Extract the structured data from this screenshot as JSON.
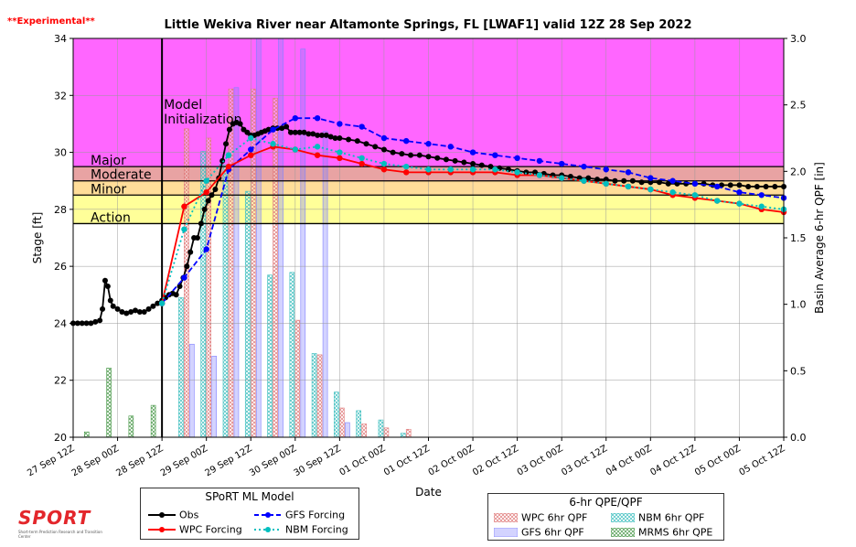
{
  "experimental_label": "**Experimental**",
  "title": "Little Wekiva River near Altamonte Springs, FL [LWAF1] valid  12Z 28 Sep 2022",
  "logo": {
    "text": "SPORT",
    "tagline": "Short-term Prediction Research and Transition Center"
  },
  "legends": {
    "model": {
      "title": "SPoRT ML Model",
      "items": [
        {
          "name": "Obs",
          "color": "#000000",
          "style": "solid"
        },
        {
          "name": "GFS Forcing",
          "color": "#0000ff",
          "style": "dashed"
        },
        {
          "name": "WPC Forcing",
          "color": "#ff0000",
          "style": "solid"
        },
        {
          "name": "NBM Forcing",
          "color": "#00bfbf",
          "style": "dotted"
        }
      ]
    },
    "qpf": {
      "title": "6-hr QPE/QPF",
      "items": [
        {
          "name": "WPC 6hr QPF",
          "color": "#e07b7b"
        },
        {
          "name": "NBM 6hr QPF",
          "color": "#3fbfbf"
        },
        {
          "name": "GFS 6hr QPF",
          "color": "#8080ff"
        },
        {
          "name": "MRMS 6hr QPE",
          "color": "#4c9a4c"
        }
      ]
    }
  },
  "chart_data": {
    "type": "line",
    "xlabel": "Date",
    "ylabel": "Stage [ft]",
    "y2label": "Basin Average 6-hr QPF [in]",
    "xlim": [
      0,
      8
    ],
    "ylim": [
      20,
      34
    ],
    "y2lim": [
      0.0,
      3.0
    ],
    "x_ticks": [
      {
        "x": 0,
        "label": "27 Sep 12Z"
      },
      {
        "x": 0.5,
        "label": "28 Sep 00Z"
      },
      {
        "x": 1,
        "label": "28 Sep 12Z"
      },
      {
        "x": 1.5,
        "label": "29 Sep 00Z"
      },
      {
        "x": 2,
        "label": "29 Sep 12Z"
      },
      {
        "x": 2.5,
        "label": "30 Sep 00Z"
      },
      {
        "x": 3,
        "label": "30 Sep 12Z"
      },
      {
        "x": 3.5,
        "label": "01 Oct 00Z"
      },
      {
        "x": 4,
        "label": "01 Oct 12Z"
      },
      {
        "x": 4.5,
        "label": "02 Oct 00Z"
      },
      {
        "x": 5,
        "label": "02 Oct 12Z"
      },
      {
        "x": 5.5,
        "label": "03 Oct 00Z"
      },
      {
        "x": 6,
        "label": "03 Oct 12Z"
      },
      {
        "x": 6.5,
        "label": "04 Oct 00Z"
      },
      {
        "x": 7,
        "label": "04 Oct 12Z"
      },
      {
        "x": 7.5,
        "label": "05 Oct 00Z"
      },
      {
        "x": 8,
        "label": "05 Oct 12Z"
      }
    ],
    "y_ticks": [
      20,
      22,
      24,
      26,
      28,
      30,
      32,
      34
    ],
    "y2_ticks": [
      {
        "v": 0.0,
        "label": "0.0"
      },
      {
        "v": 0.5,
        "label": "0.5"
      },
      {
        "v": 1.0,
        "label": "1.0"
      },
      {
        "v": 1.5,
        "label": "1.5"
      },
      {
        "v": 2.0,
        "label": "2.0"
      },
      {
        "v": 2.5,
        "label": "2.5"
      },
      {
        "v": 3.0,
        "label": "3.0"
      }
    ],
    "grid": true,
    "init_x": 1,
    "init_label": [
      "Model",
      "Initialization"
    ],
    "flood_levels": [
      {
        "name": "Major",
        "from": 29.5,
        "to": 34,
        "color": "#ff66ff",
        "line": true
      },
      {
        "name": "Moderate",
        "from": 29,
        "to": 29.5,
        "color": "#e8a3a3",
        "line": true
      },
      {
        "name": "Minor",
        "from": 28.5,
        "to": 29,
        "color": "#ffdd99",
        "line": true
      },
      {
        "name": "Action",
        "from": 27.5,
        "to": 28.5,
        "color": "#ffff99",
        "line": true
      }
    ],
    "series": [
      {
        "name": "Obs",
        "color": "#000000",
        "style": "solid",
        "marker": "circle",
        "x": [
          0,
          0.05,
          0.1,
          0.15,
          0.2,
          0.25,
          0.3,
          0.33,
          0.36,
          0.39,
          0.42,
          0.45,
          0.5,
          0.55,
          0.6,
          0.65,
          0.7,
          0.75,
          0.8,
          0.85,
          0.9,
          0.95,
          1.0,
          1.04,
          1.08,
          1.12,
          1.16,
          1.2,
          1.24,
          1.28,
          1.32,
          1.36,
          1.4,
          1.44,
          1.48,
          1.52,
          1.56,
          1.6,
          1.64,
          1.68,
          1.72,
          1.76,
          1.8,
          1.84,
          1.88,
          1.92,
          1.96,
          2.0,
          2.04,
          2.08,
          2.12,
          2.16,
          2.2,
          2.25,
          2.3,
          2.35,
          2.4,
          2.45,
          2.5,
          2.55,
          2.6,
          2.65,
          2.7,
          2.75,
          2.8,
          2.85,
          2.9,
          2.95,
          3.0,
          3.1,
          3.2,
          3.3,
          3.4,
          3.5,
          3.6,
          3.7,
          3.8,
          3.9,
          4.0,
          4.1,
          4.2,
          4.3,
          4.4,
          4.5,
          4.6,
          4.7,
          4.8,
          4.9,
          5.0,
          5.1,
          5.2,
          5.3,
          5.4,
          5.5,
          5.6,
          5.7,
          5.8,
          5.9,
          6.0,
          6.1,
          6.2,
          6.3,
          6.4,
          6.5,
          6.6,
          6.7,
          6.8,
          6.9,
          7.0,
          7.1,
          7.2,
          7.3,
          7.4,
          7.5,
          7.6,
          7.7,
          7.8,
          7.9,
          8.0
        ],
        "y": [
          24.0,
          24.0,
          24.0,
          24.0,
          24.0,
          24.05,
          24.1,
          24.5,
          25.5,
          25.3,
          24.8,
          24.6,
          24.5,
          24.4,
          24.35,
          24.4,
          24.45,
          24.4,
          24.4,
          24.5,
          24.6,
          24.7,
          24.8,
          24.9,
          25.0,
          25.05,
          25.0,
          25.3,
          25.6,
          26.0,
          26.5,
          27.0,
          27.0,
          27.5,
          28.0,
          28.3,
          28.5,
          28.7,
          29.1,
          29.7,
          30.3,
          30.8,
          31.0,
          31.05,
          31.0,
          30.8,
          30.7,
          30.6,
          30.6,
          30.65,
          30.7,
          30.75,
          30.8,
          30.85,
          30.85,
          30.85,
          30.9,
          30.7,
          30.7,
          30.7,
          30.7,
          30.65,
          30.65,
          30.6,
          30.6,
          30.6,
          30.55,
          30.5,
          30.5,
          30.45,
          30.4,
          30.3,
          30.2,
          30.1,
          30.0,
          29.95,
          29.9,
          29.9,
          29.85,
          29.8,
          29.75,
          29.7,
          29.65,
          29.6,
          29.55,
          29.5,
          29.45,
          29.4,
          29.35,
          29.3,
          29.3,
          29.25,
          29.2,
          29.2,
          29.15,
          29.1,
          29.1,
          29.05,
          29.05,
          29.0,
          29.0,
          29.0,
          28.95,
          28.95,
          28.95,
          28.9,
          28.9,
          28.9,
          28.9,
          28.9,
          28.85,
          28.85,
          28.85,
          28.85,
          28.8,
          28.8,
          28.8,
          28.8,
          28.8
        ]
      },
      {
        "name": "GFS Forcing",
        "color": "#0000ff",
        "style": "dashed",
        "marker": "circle",
        "x": [
          1.0,
          1.25,
          1.5,
          1.75,
          2.0,
          2.25,
          2.5,
          2.75,
          3.0,
          3.25,
          3.5,
          3.75,
          4.0,
          4.25,
          4.5,
          4.75,
          5.0,
          5.25,
          5.5,
          5.75,
          6.0,
          6.25,
          6.5,
          6.75,
          7.0,
          7.25,
          7.5,
          7.75,
          8.0
        ],
        "y": [
          24.7,
          25.6,
          26.6,
          29.4,
          30.1,
          30.8,
          31.2,
          31.2,
          31.0,
          30.9,
          30.5,
          30.4,
          30.3,
          30.2,
          30.0,
          29.9,
          29.8,
          29.7,
          29.6,
          29.5,
          29.4,
          29.3,
          29.1,
          29.0,
          28.9,
          28.8,
          28.6,
          28.5,
          28.4
        ]
      },
      {
        "name": "WPC Forcing",
        "color": "#ff0000",
        "style": "solid",
        "marker": "circle",
        "x": [
          1.0,
          1.25,
          1.5,
          1.75,
          2.0,
          2.25,
          2.5,
          2.75,
          3.0,
          3.25,
          3.5,
          3.75,
          4.0,
          4.25,
          4.5,
          4.75,
          5.0,
          5.25,
          5.5,
          5.75,
          6.0,
          6.25,
          6.5,
          6.75,
          7.0,
          7.25,
          7.5,
          7.75,
          8.0
        ],
        "y": [
          24.7,
          28.1,
          28.6,
          29.5,
          29.9,
          30.2,
          30.1,
          29.9,
          29.8,
          29.6,
          29.4,
          29.3,
          29.3,
          29.3,
          29.3,
          29.3,
          29.2,
          29.2,
          29.1,
          29.0,
          28.9,
          28.8,
          28.7,
          28.5,
          28.4,
          28.3,
          28.2,
          28.0,
          27.9
        ]
      },
      {
        "name": "NBM Forcing",
        "color": "#00bfbf",
        "style": "dotted",
        "marker": "circle",
        "x": [
          1.0,
          1.25,
          1.5,
          1.75,
          2.0,
          2.25,
          2.5,
          2.75,
          3.0,
          3.25,
          3.5,
          3.75,
          4.0,
          4.25,
          4.5,
          4.75,
          5.0,
          5.25,
          5.5,
          5.75,
          6.0,
          6.25,
          6.5,
          6.75,
          7.0,
          7.25,
          7.5,
          7.75,
          8.0
        ],
        "y": [
          24.7,
          27.3,
          29.0,
          29.9,
          30.5,
          30.3,
          30.1,
          30.2,
          30.0,
          29.8,
          29.6,
          29.5,
          29.4,
          29.4,
          29.4,
          29.4,
          29.3,
          29.2,
          29.1,
          29.0,
          28.9,
          28.8,
          28.7,
          28.6,
          28.5,
          28.3,
          28.2,
          28.1,
          28.0
        ]
      }
    ],
    "qpf_bars": {
      "x": [
        0.25,
        0.5,
        0.75,
        1.0,
        1.25,
        1.5,
        1.75,
        2.0,
        2.25,
        2.5,
        2.75,
        3.0,
        3.25,
        3.5,
        3.75
      ],
      "MRMS": [
        0.04,
        0.52,
        0.16,
        0.24,
        0,
        0,
        0,
        0,
        0,
        0,
        0,
        0,
        0,
        0,
        0
      ],
      "NBM": [
        0,
        0,
        0,
        0,
        1.05,
        2.15,
        2.05,
        1.85,
        1.22,
        1.24,
        0.63,
        0.34,
        0.2,
        0.13,
        0.03
      ],
      "WPC": [
        0,
        0,
        0,
        0,
        2.32,
        2.25,
        2.62,
        2.62,
        2.55,
        0.88,
        0.62,
        0.22,
        0.1,
        0.07,
        0.06
      ],
      "GFS": [
        0,
        0,
        0,
        0,
        0.7,
        0.61,
        2.63,
        3.0,
        3.0,
        2.92,
        2.3,
        0.11,
        0,
        0,
        0
      ]
    }
  }
}
